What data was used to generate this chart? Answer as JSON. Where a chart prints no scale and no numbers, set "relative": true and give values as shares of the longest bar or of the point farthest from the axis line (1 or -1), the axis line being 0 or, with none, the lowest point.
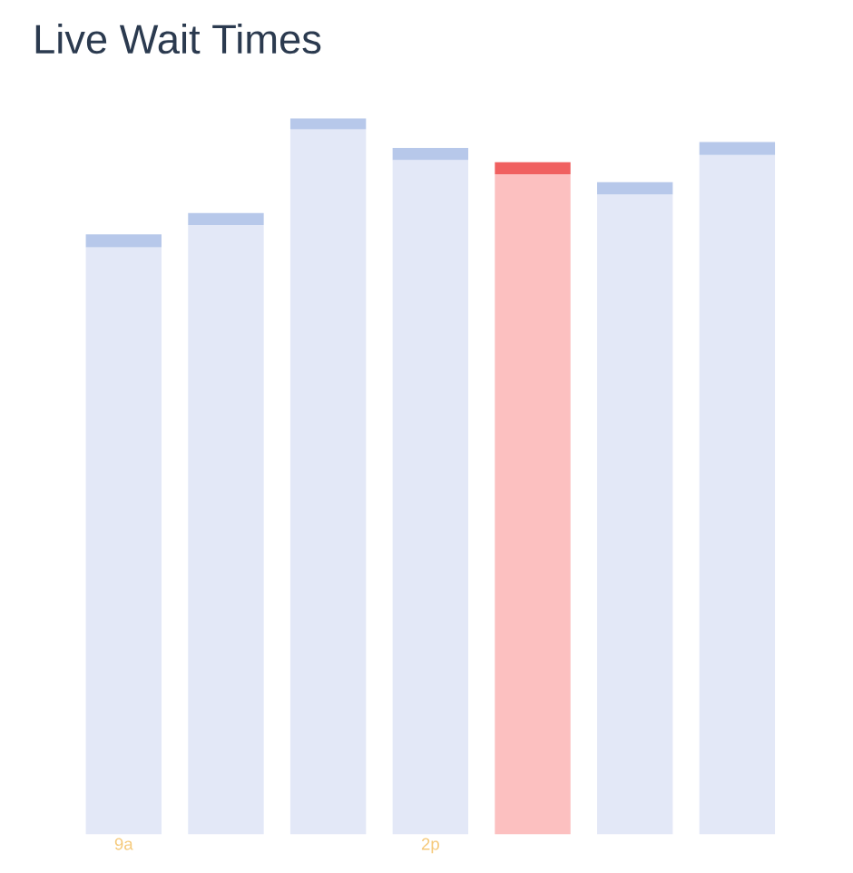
{
  "chart_data": {
    "type": "bar",
    "title": "Live Wait Times",
    "relative": true,
    "stacked": true,
    "categories": [
      "9a",
      null,
      null,
      "2p",
      null,
      null,
      null
    ],
    "series": [
      {
        "colors": [
          "#e3e8f7",
          "#e3e8f7",
          "#e3e8f7",
          "#e3e8f7",
          "#fcc0c0",
          "#e3e8f7",
          "#e3e8f7"
        ],
        "values": [
          0.82,
          0.851,
          0.985,
          0.942,
          0.922,
          0.894,
          0.949
        ]
      },
      {
        "colors": [
          "#b7c8ea",
          "#b7c8ea",
          "#b7c8ea",
          "#b7c8ea",
          "#f06060",
          "#b7c8ea",
          "#b7c8ea"
        ],
        "values": [
          0.018,
          0.017,
          0.015,
          0.017,
          0.017,
          0.017,
          0.018
        ]
      }
    ]
  }
}
